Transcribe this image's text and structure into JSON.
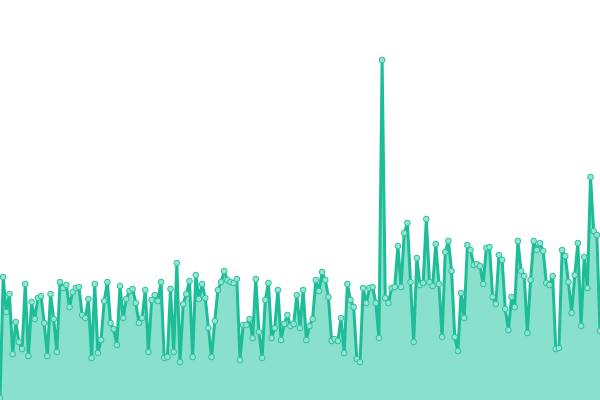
{
  "chart_data": {
    "type": "area",
    "title": "",
    "xlabel": "",
    "ylabel": "",
    "ylim": [
      0,
      400
    ],
    "grid": false,
    "legend": "none",
    "colors": {
      "line": "#1dbd98",
      "fill": "#89e0cd",
      "marker_fill": "#93e4d2",
      "marker_stroke": "#2ec19f"
    },
    "values": [
      2,
      123,
      88,
      106,
      46,
      78,
      58,
      51,
      116,
      44,
      98,
      81,
      102,
      104,
      77,
      44,
      106,
      81,
      48,
      118,
      112,
      115,
      93,
      108,
      112,
      113,
      85,
      82,
      101,
      42,
      116,
      47,
      60,
      99,
      118,
      77,
      71,
      55,
      114,
      82,
      101,
      109,
      111,
      97,
      77,
      82,
      110,
      48,
      100,
      105,
      99,
      118,
      42,
      43,
      111,
      48,
      137,
      38,
      96,
      106,
      119,
      43,
      125,
      101,
      116,
      102,
      72,
      43,
      79,
      110,
      118,
      129,
      120,
      118,
      117,
      121,
      40,
      75,
      75,
      81,
      62,
      121,
      68,
      42,
      100,
      117,
      62,
      72,
      110,
      60,
      76,
      85,
      74,
      76,
      105,
      72,
      110,
      60,
      74,
      81,
      120,
      109,
      128,
      120,
      103,
      59,
      61,
      59,
      82,
      47,
      116,
      100,
      93,
      41,
      38,
      112,
      97,
      112,
      113,
      97,
      62,
      340,
      102,
      97,
      112,
      113,
      154,
      113,
      167,
      177,
      118,
      58,
      142,
      115,
      117,
      181,
      118,
      114,
      156,
      116,
      63,
      148,
      159,
      129,
      63,
      49,
      107,
      82,
      155,
      150,
      135,
      136,
      134,
      116,
      152,
      153,
      103,
      96,
      145,
      140,
      91,
      70,
      103,
      93,
      159,
      129,
      124,
      67,
      120,
      159,
      150,
      157,
      149,
      117,
      115,
      124,
      51,
      52,
      150,
      144,
      118,
      87,
      125,
      157,
      74,
      143,
      112,
      223,
      169,
      165,
      69
    ]
  }
}
